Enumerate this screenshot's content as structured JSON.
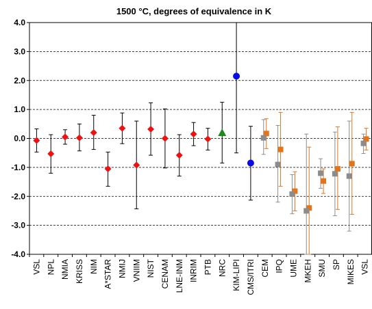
{
  "chart_data": {
    "type": "scatter",
    "title": "1500 °C, degrees of equivalence in K",
    "xlabel": "",
    "ylabel": "",
    "ylim": [
      -4.0,
      4.0
    ],
    "yticks": [
      "4.0",
      "3.0",
      "2.0",
      "1.0",
      "0.0",
      "-1.0",
      "-2.0",
      "-3.0",
      "-4.0"
    ],
    "grid": "horizontal-dashed",
    "categories": [
      "VSL",
      "NPL",
      "NMIA",
      "KRISS",
      "NIM",
      "A*STAR",
      "NMIJ",
      "VNIIM",
      "NIST",
      "CENAM",
      "LNE-INM",
      "INRIM",
      "PTB",
      "NRC",
      "KIM-LIPI",
      "CMS/ITRI",
      "CEM",
      "IPQ",
      "UME",
      "MKEH",
      "SMU",
      "SP",
      "MIKES",
      "VSL"
    ],
    "colors": {
      "red": "#ee1111",
      "green": "#1a8a1a",
      "blue": "#0a0ae6",
      "orange": "#e2751c",
      "gray": "#8c8c8c"
    },
    "series": [
      {
        "marker": "diamond",
        "color": "red",
        "points": [
          {
            "x": "VSL",
            "y": -0.07,
            "err_low": -0.47,
            "err_high": 0.33
          },
          {
            "x": "NPL",
            "y": -0.53,
            "err_low": -1.2,
            "err_high": 0.13
          },
          {
            "x": "NMIA",
            "y": 0.05,
            "err_low": -0.2,
            "err_high": 0.3
          },
          {
            "x": "KRISS",
            "y": 0.02,
            "err_low": -0.43,
            "err_high": 0.5
          },
          {
            "x": "NIM",
            "y": 0.2,
            "err_low": -0.38,
            "err_high": 0.8
          },
          {
            "x": "A*STAR",
            "y": -1.05,
            "err_low": -1.65,
            "err_high": -0.47
          },
          {
            "x": "NMIJ",
            "y": 0.35,
            "err_low": -0.18,
            "err_high": 0.88
          },
          {
            "x": "VNIIM",
            "y": -0.92,
            "err_low": -2.43,
            "err_high": 0.6
          },
          {
            "x": "NIST",
            "y": 0.32,
            "err_low": -0.58,
            "err_high": 1.23
          },
          {
            "x": "CENAM",
            "y": 0.0,
            "err_low": -1.02,
            "err_high": 1.02
          },
          {
            "x": "LNE-INM",
            "y": -0.58,
            "err_low": -1.3,
            "err_high": 0.13
          },
          {
            "x": "INRIM",
            "y": 0.15,
            "err_low": -0.25,
            "err_high": 0.55
          },
          {
            "x": "PTB",
            "y": -0.02,
            "err_low": -0.4,
            "err_high": 0.35
          }
        ]
      },
      {
        "marker": "triangle",
        "color": "green",
        "points": [
          {
            "x": "NRC",
            "y": 0.2,
            "err_low": -0.85,
            "err_high": 1.25
          }
        ]
      },
      {
        "marker": "circle",
        "color": "blue",
        "points": [
          {
            "x": "KIM-LIPI",
            "y": 2.15,
            "err_low": -0.5,
            "err_high": 4.0
          },
          {
            "x": "CMS/ITRI",
            "y": -0.85,
            "err_low": -2.13,
            "err_high": 0.42
          }
        ]
      },
      {
        "marker": "square",
        "color": "orange",
        "points": [
          {
            "x": "CEM",
            "y": 0.17,
            "err_low": -0.35,
            "err_high": 0.68
          },
          {
            "x": "IPQ",
            "y": -0.38,
            "err_low": -1.65,
            "err_high": 0.9
          },
          {
            "x": "UME",
            "y": -1.82,
            "err_low": -2.5,
            "err_high": -1.15
          },
          {
            "x": "MKEH",
            "y": -2.4,
            "err_low": -4.0,
            "err_high": -0.3
          },
          {
            "x": "SMU",
            "y": -1.47,
            "err_low": -1.9,
            "err_high": -1.05
          },
          {
            "x": "SP",
            "y": -1.05,
            "err_low": -2.45,
            "err_high": 0.4
          },
          {
            "x": "MIKES",
            "y": -0.87,
            "err_low": -2.62,
            "err_high": 0.9
          },
          {
            "x": "VSL",
            "y": -0.02,
            "err_low": -0.4,
            "err_high": 0.35
          }
        ]
      },
      {
        "marker": "square",
        "color": "gray",
        "points": [
          {
            "x": "CEM",
            "y": 0.02,
            "err_low": -0.55,
            "err_high": 0.65
          },
          {
            "x": "IPQ",
            "y": -0.9,
            "err_low": -2.2,
            "err_high": 0.45
          },
          {
            "x": "UME",
            "y": -1.92,
            "err_low": -2.6,
            "err_high": -1.25
          },
          {
            "x": "MKEH",
            "y": -2.5,
            "err_low": -4.0,
            "err_high": 0.15
          },
          {
            "x": "SMU",
            "y": -1.2,
            "err_low": -1.72,
            "err_high": -0.7
          },
          {
            "x": "SP",
            "y": -1.22,
            "err_low": -2.67,
            "err_high": 0.22
          },
          {
            "x": "MIKES",
            "y": -1.3,
            "err_low": -3.2,
            "err_high": 0.6
          },
          {
            "x": "VSL",
            "y": -0.17,
            "err_low": -0.52,
            "err_high": 0.15
          }
        ]
      }
    ]
  }
}
